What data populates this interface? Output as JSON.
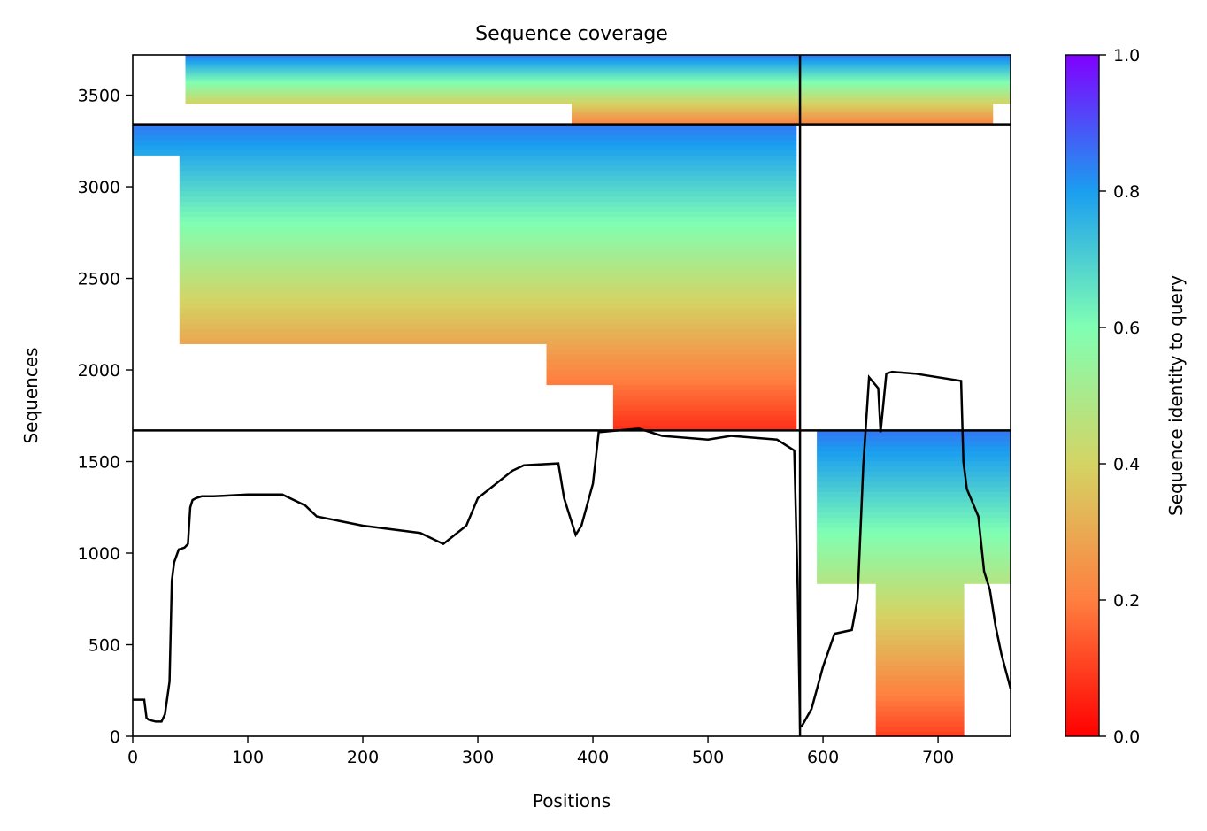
{
  "chart_data": {
    "type": "heatmap",
    "title": "Sequence coverage",
    "xlabel": "Positions",
    "ylabel": "Sequences",
    "xlim": [
      0,
      763
    ],
    "ylim": [
      0,
      3720
    ],
    "x_ticks": [
      0,
      100,
      200,
      300,
      400,
      500,
      600,
      700
    ],
    "y_ticks": [
      0,
      500,
      1000,
      1500,
      2000,
      2500,
      3000,
      3500
    ],
    "grid": false,
    "colorbar": {
      "label": "Sequence identity to query",
      "range": [
        0,
        1
      ],
      "ticks": [
        "0.0",
        "0.2",
        "0.4",
        "0.6",
        "0.8",
        "1.0"
      ],
      "colormap": "rainbow_r",
      "stops": [
        "#ff0000",
        "#ff7f40",
        "#d4d464",
        "#80ffb3",
        "#1a9ef0",
        "#8000ff"
      ]
    },
    "chain_boundary_x": 580,
    "block_boundaries_y": [
      1670,
      3340
    ],
    "blocks": [
      {
        "name": "A",
        "x": [
          0,
          580
        ],
        "y": [
          1670,
          3340
        ],
        "identity_range": [
          0.07,
          0.85
        ]
      },
      {
        "name": "B",
        "x": [
          580,
          763
        ],
        "y": [
          0,
          1670
        ],
        "identity_range": [
          0.1,
          0.85
        ]
      },
      {
        "name": "AB",
        "x": [
          0,
          763
        ],
        "y": [
          3340,
          3720
        ],
        "identity_range": [
          0.2,
          0.85
        ]
      }
    ],
    "coverage_line": {
      "color": "#000000",
      "x": [
        0,
        10,
        12,
        14,
        20,
        25,
        28,
        32,
        34,
        36,
        40,
        45,
        48,
        50,
        52,
        55,
        60,
        70,
        100,
        130,
        150,
        160,
        200,
        250,
        270,
        280,
        290,
        300,
        330,
        340,
        370,
        375,
        380,
        385,
        390,
        400,
        405,
        440,
        460,
        500,
        520,
        560,
        575,
        578,
        580,
        582,
        590,
        600,
        610,
        625,
        630,
        635,
        640,
        648,
        650,
        655,
        660,
        680,
        700,
        720,
        722,
        725,
        735,
        740,
        745,
        750,
        755,
        763
      ],
      "y": [
        200,
        200,
        100,
        90,
        80,
        80,
        120,
        300,
        850,
        950,
        1020,
        1030,
        1050,
        1250,
        1290,
        1300,
        1310,
        1310,
        1320,
        1320,
        1260,
        1200,
        1150,
        1110,
        1050,
        1100,
        1150,
        1300,
        1450,
        1480,
        1490,
        1300,
        1200,
        1100,
        1150,
        1380,
        1660,
        1680,
        1640,
        1620,
        1640,
        1620,
        1560,
        800,
        50,
        60,
        150,
        380,
        560,
        580,
        750,
        1480,
        1960,
        1900,
        1660,
        1980,
        1990,
        1980,
        1960,
        1940,
        1500,
        1350,
        1200,
        900,
        800,
        600,
        450,
        260
      ]
    }
  }
}
